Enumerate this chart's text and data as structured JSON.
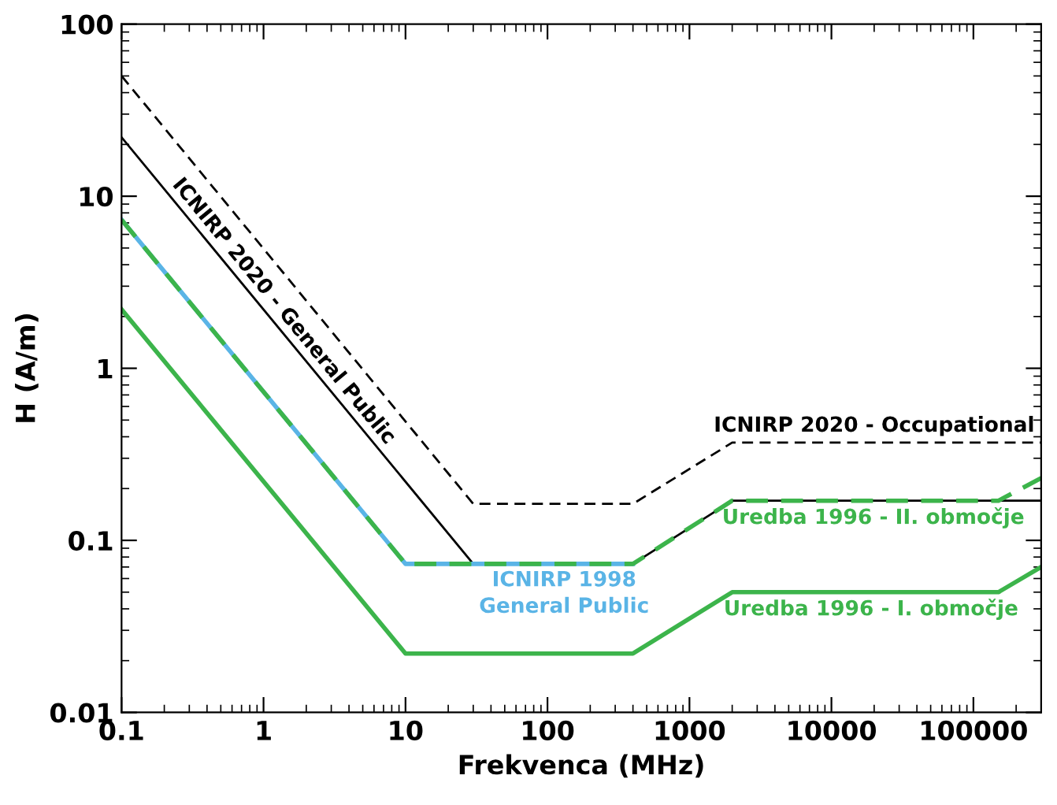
{
  "chart_data": {
    "type": "line",
    "xlabel": "Frekvenca (MHz)",
    "ylabel": "H (A/m)",
    "log": "xy",
    "xlim": [
      0.1,
      300000
    ],
    "ylim": [
      0.01,
      100
    ],
    "xticks": [
      {
        "value": 0.1,
        "label": "0.1"
      },
      1,
      10,
      100,
      1000,
      10000,
      100000
    ],
    "yticks": [
      {
        "value": 0.01,
        "label": "0.01"
      },
      {
        "value": 0.1,
        "label": "0.1"
      },
      1,
      10,
      100
    ],
    "grid": false,
    "marker": "none",
    "series": [
      {
        "color": "#000000",
        "line_style": "dashed",
        "x": [
          0.1,
          30,
          400,
          2000,
          300000
        ],
        "values": [
          50,
          0.163,
          0.163,
          0.37,
          0.37
        ]
      },
      {
        "color": "#000000",
        "line_style": "solid",
        "x": [
          0.1,
          30,
          400,
          2000,
          300000
        ],
        "values": [
          22,
          0.073,
          0.073,
          0.17,
          0.17
        ]
      },
      {
        "color": "#5ab4e6",
        "line_style": "solid",
        "x": [
          0.1,
          10,
          400
        ],
        "values": [
          7.3,
          0.073,
          0.073
        ]
      },
      {
        "color": "#3cb44b",
        "line_style": "dashed",
        "x": [
          0.1,
          10,
          400,
          2000,
          150000,
          300000
        ],
        "values": [
          7.3,
          0.073,
          0.073,
          0.17,
          0.17,
          0.23
        ]
      },
      {
        "color": "#3cb44b",
        "line_style": "solid",
        "x": [
          0.1,
          10,
          400,
          2000,
          150000,
          300000
        ],
        "values": [
          2.2,
          0.022,
          0.022,
          0.05,
          0.05,
          0.07
        ]
      }
    ],
    "annotations": [
      {
        "text": "ICNIRP 2020 - Occupational",
        "x": 20000,
        "y": 0.37
      },
      {
        "text": "ICNIRP 2020 - General Public",
        "x": 1.22,
        "y": 1.8
      },
      {
        "text": "ICNIRP 1998\nGeneral Public",
        "x": 131,
        "y": 0.073
      },
      {
        "text": "Uredba 1996 - II. območje",
        "x": 19700,
        "y": 0.17
      },
      {
        "text": "Uredba 1996 - I. območje",
        "x": 19000,
        "y": 0.05
      }
    ]
  }
}
